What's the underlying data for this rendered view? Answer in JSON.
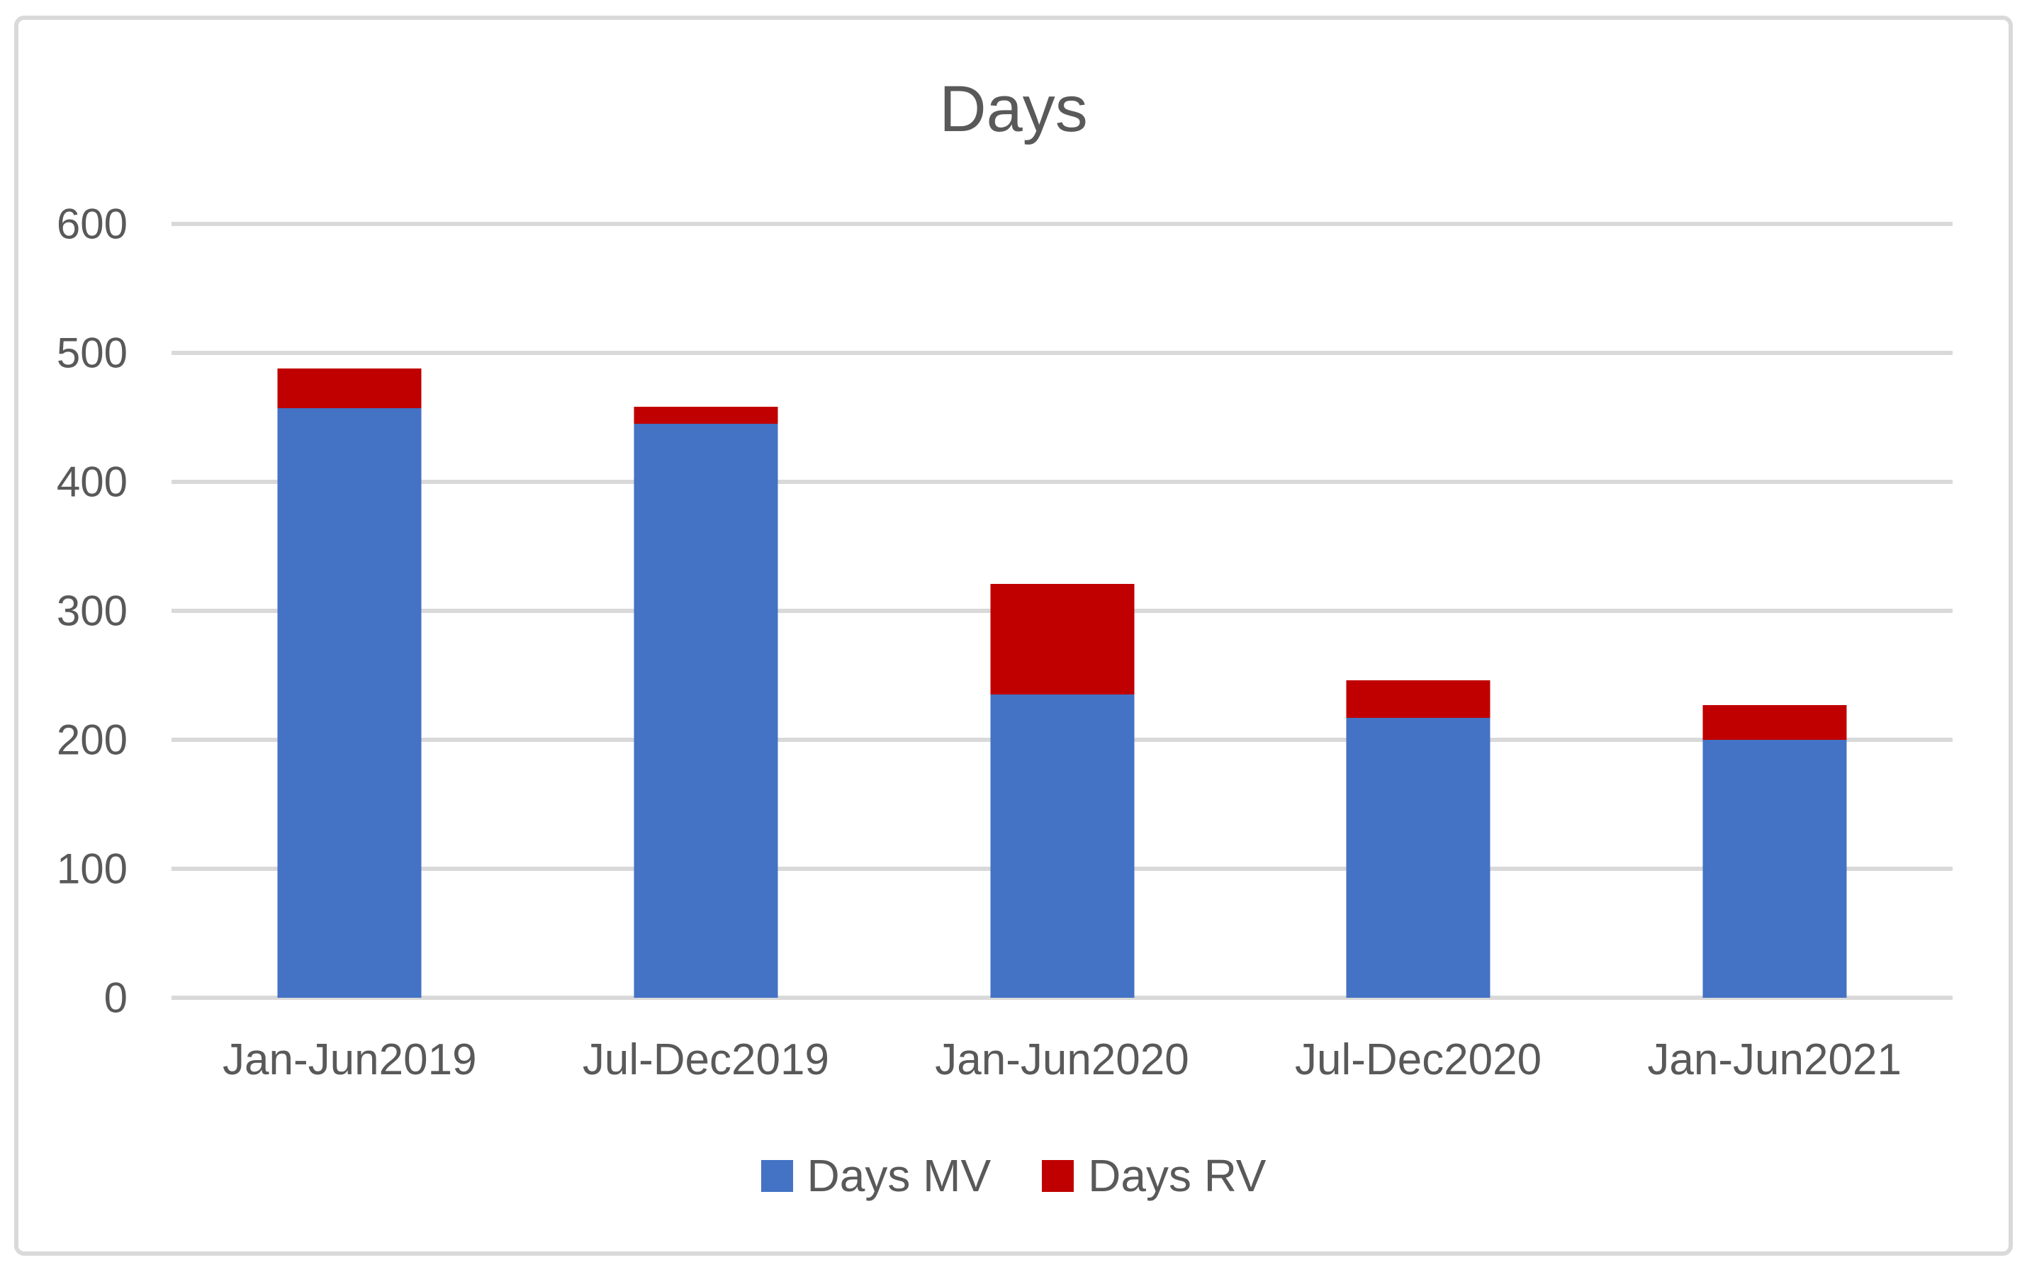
{
  "title": "Days",
  "colors": {
    "series_mv_blue": "#4472C4",
    "series_rv_red": "#C00000",
    "text_gray": "#595959",
    "gridline_gray": "#D9D9D9",
    "frame_border_gray": "#D9D9D9",
    "background": "#FFFFFF"
  },
  "chart_data": {
    "type": "bar",
    "stacked": true,
    "title": "Days",
    "categories": [
      "Jan-Jun2019",
      "Jul-Dec2019",
      "Jan-Jun2020",
      "Jul-Dec2020",
      "Jan-Jun2021"
    ],
    "series": [
      {
        "name": "Days MV",
        "color": "#4472C4",
        "values": [
          457,
          445,
          235,
          217,
          200
        ]
      },
      {
        "name": "Days RV",
        "color": "#C00000",
        "values": [
          31,
          13,
          86,
          29,
          27
        ]
      }
    ],
    "stack_totals": [
      488,
      458,
      321,
      246,
      227
    ],
    "xlabel": "",
    "ylabel": "",
    "ylim": [
      0,
      600
    ],
    "yticks": [
      0,
      100,
      200,
      300,
      400,
      500,
      600
    ],
    "grid": true,
    "gridlines": "horizontal",
    "legend_position": "bottom"
  }
}
